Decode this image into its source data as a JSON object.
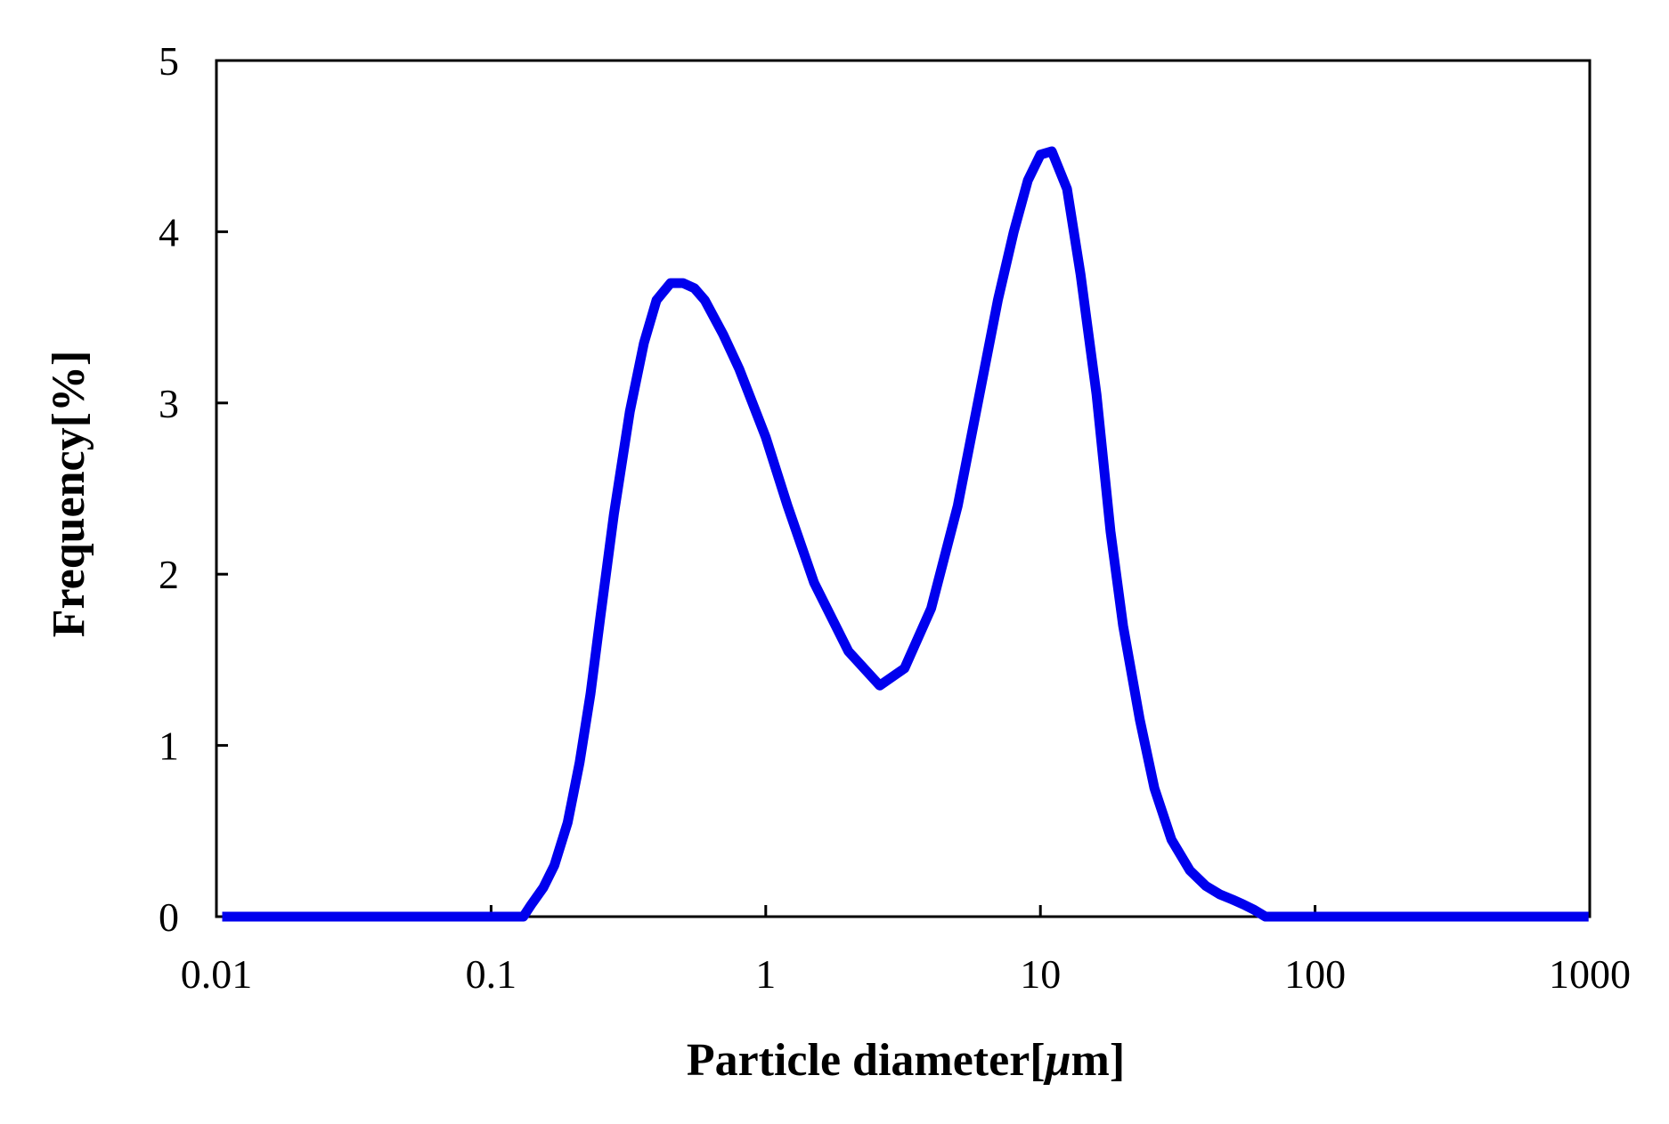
{
  "chart_data": {
    "type": "line",
    "title": "",
    "xlabel_prefix": "Particle diameter[",
    "xlabel_mu": "μ",
    "xlabel_suffix": "m]",
    "ylabel": "Frequency[%]",
    "x_scale": "log",
    "xlim": [
      0.01,
      1000
    ],
    "ylim": [
      0,
      5
    ],
    "x_ticks": [
      0.01,
      0.1,
      1,
      10,
      100,
      1000
    ],
    "x_tick_labels": [
      "0.01",
      "0.1",
      "1",
      "10",
      "100",
      "1000"
    ],
    "y_ticks": [
      0,
      1,
      2,
      3,
      4,
      5
    ],
    "y_tick_labels": [
      "0",
      "1",
      "2",
      "3",
      "4",
      "5"
    ],
    "grid": false,
    "legend": "none",
    "series": [
      {
        "color": "#0000ee",
        "x": [
          0.0105,
          0.02,
          0.05,
          0.1,
          0.131,
          0.14,
          0.155,
          0.17,
          0.19,
          0.21,
          0.23,
          0.25,
          0.28,
          0.32,
          0.36,
          0.4,
          0.45,
          0.5,
          0.55,
          0.6,
          0.7,
          0.8,
          1.0,
          1.2,
          1.5,
          2.0,
          2.6,
          3.2,
          4.0,
          5.0,
          6.0,
          7.0,
          8.0,
          9.0,
          10.0,
          11.0,
          12.5,
          14.0,
          16.0,
          18.0,
          20.0,
          23.0,
          26.0,
          30.0,
          35.0,
          40.0,
          45.0,
          50.0,
          55.0,
          60.0,
          66.0,
          100,
          500,
          990
        ],
        "y": [
          0,
          0,
          0,
          0,
          0,
          0.07,
          0.17,
          0.3,
          0.55,
          0.9,
          1.3,
          1.75,
          2.35,
          2.95,
          3.35,
          3.6,
          3.7,
          3.7,
          3.67,
          3.6,
          3.4,
          3.2,
          2.8,
          2.4,
          1.95,
          1.55,
          1.35,
          1.45,
          1.8,
          2.4,
          3.05,
          3.6,
          4.0,
          4.3,
          4.45,
          4.47,
          4.25,
          3.75,
          3.05,
          2.25,
          1.7,
          1.15,
          0.75,
          0.45,
          0.27,
          0.18,
          0.13,
          0.1,
          0.07,
          0.04,
          0,
          0,
          0,
          0
        ]
      }
    ]
  }
}
